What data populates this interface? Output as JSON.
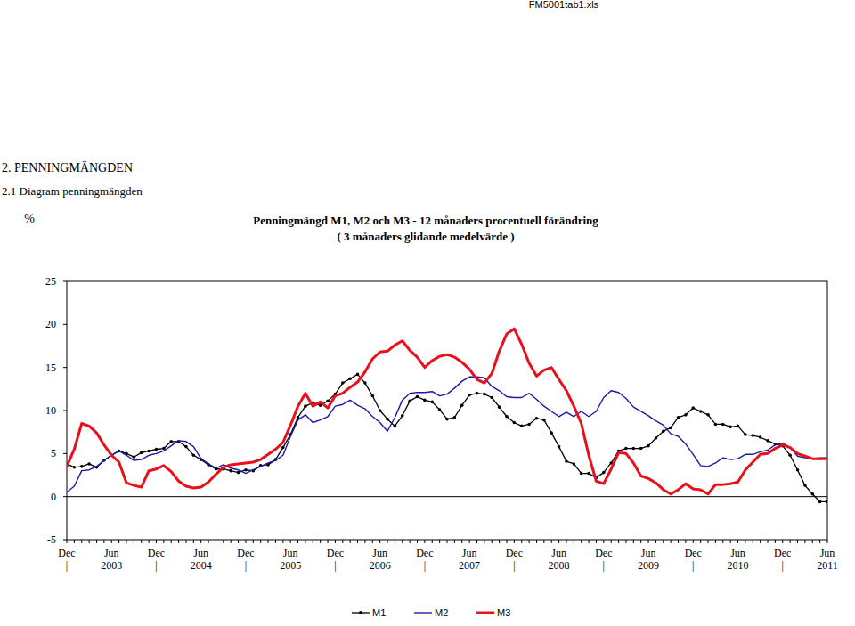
{
  "header": {
    "file": "FM5001tab1.xls",
    "section": "2. PENNINGMÄNGDEN",
    "subsection": "2.1 Diagram penningmängden"
  },
  "chart_data": {
    "type": "line",
    "title": "Penningmängd M1, M2 och M3 - 12 månaders procentuell förändring",
    "subtitle": "( 3 månaders glidande medelvärde )",
    "ylabel": "%",
    "categories": [
      "Dec\n|",
      null,
      null,
      null,
      null,
      null,
      "Jun\n2003",
      null,
      null,
      null,
      null,
      null,
      "Dec\n|",
      null,
      null,
      null,
      null,
      null,
      "Jun\n2004",
      null,
      null,
      null,
      null,
      null,
      "Dec\n|",
      null,
      null,
      null,
      null,
      null,
      "Jun\n2005",
      null,
      null,
      null,
      null,
      null,
      "Dec\n|",
      null,
      null,
      null,
      null,
      null,
      "Jun\n2006",
      null,
      null,
      null,
      null,
      null,
      "Dec\n|",
      null,
      null,
      null,
      null,
      null,
      "Jun\n2007",
      null,
      null,
      null,
      null,
      null,
      "Dec\n|",
      null,
      null,
      null,
      null,
      null,
      "Jun\n2008",
      null,
      null,
      null,
      null,
      null,
      "Dec\n|",
      null,
      null,
      null,
      null,
      null,
      "Jun\n2009",
      null,
      null,
      null,
      null,
      null,
      "Dec\n|",
      null,
      null,
      null,
      null,
      null,
      "Jun\n2010",
      null,
      null,
      null,
      null,
      null,
      "Dec\n|",
      null,
      null,
      null,
      null,
      null,
      "Jun\n2011"
    ],
    "series": [
      {
        "name": "M1",
        "color": "#000000",
        "marker": "circle",
        "values": [
          3.8,
          3.4,
          3.5,
          3.8,
          3.4,
          4.2,
          4.8,
          5.3,
          5.0,
          4.6,
          5.1,
          5.3,
          5.5,
          5.6,
          6.4,
          6.4,
          5.8,
          4.8,
          4.3,
          3.7,
          3.2,
          3.2,
          3.0,
          2.8,
          3.1,
          3.0,
          3.6,
          3.7,
          4.3,
          5.7,
          7.2,
          9.2,
          10.5,
          10.9,
          10.6,
          11.1,
          11.9,
          13.2,
          13.7,
          14.2,
          13.2,
          11.7,
          10.0,
          9.0,
          8.2,
          9.4,
          11.1,
          11.6,
          11.2,
          11.0,
          10.1,
          9.0,
          9.2,
          10.6,
          11.8,
          12.0,
          11.9,
          11.5,
          10.4,
          9.3,
          8.6,
          8.2,
          8.4,
          9.1,
          8.9,
          7.4,
          5.8,
          4.1,
          3.8,
          2.7,
          2.7,
          2.2,
          2.8,
          3.9,
          5.3,
          5.6,
          5.6,
          5.6,
          5.9,
          6.8,
          7.6,
          8.0,
          9.2,
          9.5,
          10.3,
          9.9,
          9.5,
          8.4,
          8.4,
          8.1,
          8.2,
          7.2,
          7.1,
          6.9,
          6.5,
          6.1,
          5.9,
          4.8,
          3.1,
          1.3,
          0.3,
          -0.6,
          -0.6
        ]
      },
      {
        "name": "M2",
        "color": "#1a1aa6",
        "marker": "none",
        "values": [
          0.5,
          1.2,
          3.0,
          3.1,
          3.5,
          4.2,
          4.8,
          5.3,
          4.8,
          4.2,
          4.3,
          4.8,
          5.0,
          5.3,
          5.9,
          6.5,
          6.4,
          5.8,
          4.4,
          3.8,
          3.3,
          3.7,
          3.3,
          3.1,
          2.7,
          3.1,
          3.5,
          3.9,
          4.2,
          4.8,
          7.0,
          8.9,
          9.5,
          8.6,
          8.9,
          9.3,
          10.5,
          10.7,
          11.2,
          10.6,
          10.2,
          9.3,
          8.6,
          7.6,
          9.2,
          11.2,
          12.0,
          12.1,
          12.1,
          12.2,
          11.7,
          11.9,
          12.6,
          13.4,
          13.9,
          13.9,
          13.8,
          12.8,
          12.3,
          11.6,
          11.5,
          11.5,
          12.0,
          11.3,
          10.5,
          9.9,
          9.3,
          9.8,
          9.3,
          9.9,
          9.3,
          9.9,
          11.5,
          12.3,
          12.1,
          11.4,
          10.4,
          9.9,
          9.4,
          8.8,
          8.3,
          7.3,
          7.0,
          6.1,
          4.9,
          3.6,
          3.5,
          3.9,
          4.5,
          4.3,
          4.4,
          4.9,
          4.9,
          5.2,
          5.4,
          6.0,
          6.2,
          5.7,
          4.7,
          4.5,
          4.4,
          4.5,
          4.5
        ]
      },
      {
        "name": "M3",
        "color": "#e8101a",
        "marker": "none",
        "values": [
          3.5,
          5.5,
          8.5,
          8.2,
          7.4,
          6.0,
          4.8,
          4.0,
          1.6,
          1.3,
          1.1,
          3.0,
          3.2,
          3.6,
          2.9,
          1.8,
          1.2,
          1.0,
          1.1,
          1.7,
          2.6,
          3.4,
          3.7,
          3.8,
          3.9,
          4.0,
          4.3,
          4.9,
          5.5,
          6.3,
          8.3,
          10.5,
          12.0,
          10.5,
          11.0,
          10.3,
          11.7,
          12.0,
          12.7,
          13.3,
          14.5,
          16.0,
          16.8,
          16.9,
          17.6,
          18.1,
          17.0,
          16.2,
          15.0,
          15.8,
          16.3,
          16.5,
          16.2,
          15.6,
          14.8,
          13.6,
          13.2,
          14.3,
          16.9,
          18.9,
          19.5,
          17.7,
          15.5,
          14.0,
          14.7,
          15.0,
          13.6,
          12.3,
          10.5,
          8.5,
          4.8,
          1.8,
          1.5,
          3.2,
          5.1,
          5.0,
          3.9,
          2.4,
          2.1,
          1.6,
          0.8,
          0.3,
          0.8,
          1.5,
          0.9,
          0.8,
          0.3,
          1.4,
          1.4,
          1.5,
          1.7,
          3.1,
          4.0,
          4.9,
          5.0,
          5.6,
          6.0,
          5.7,
          5.0,
          4.7,
          4.4,
          4.4,
          4.4
        ]
      }
    ],
    "ylim": [
      -5,
      25
    ],
    "yticks": [
      -5,
      0,
      5,
      10,
      15,
      20,
      25
    ],
    "grid": false,
    "legend": "bottom"
  }
}
